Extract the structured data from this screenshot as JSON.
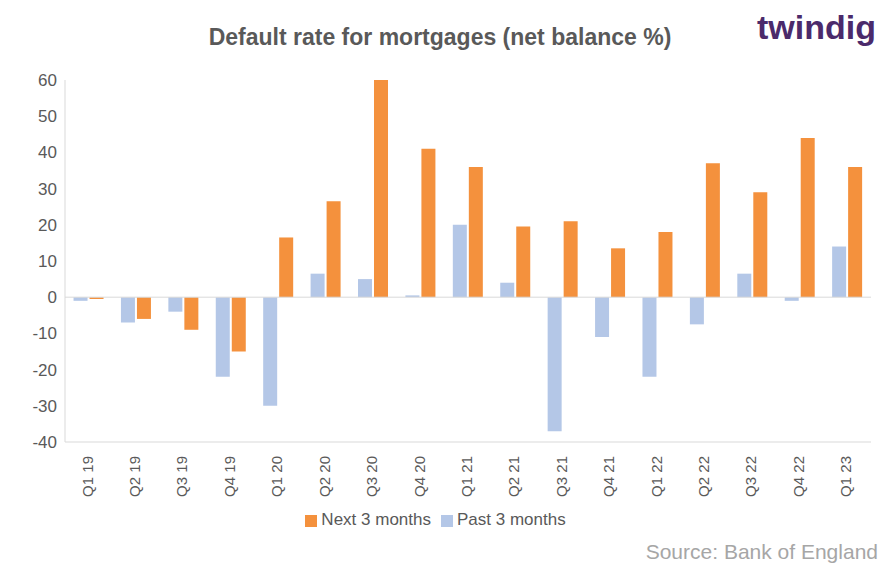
{
  "chart_data": {
    "type": "bar",
    "title": "Default rate for mortgages (net balance %)",
    "annotations": [
      "twindig",
      "Source: Bank of England"
    ],
    "categories": [
      "Q1 19",
      "Q2 19",
      "Q3 19",
      "Q4 19",
      "Q1 20",
      "Q2 20",
      "Q3 20",
      "Q4 20",
      "Q1 21",
      "Q2 21",
      "Q3 21",
      "Q4 21",
      "Q1 22",
      "Q2 22",
      "Q3 22",
      "Q4 22",
      "Q1 23"
    ],
    "series": [
      {
        "name": "Past 3 months",
        "color": "#b4c7e7",
        "values": [
          -1,
          -7,
          -4,
          -22,
          -30,
          6.5,
          5,
          0.5,
          20,
          4,
          -37,
          -11,
          -22,
          -7.5,
          6.5,
          -1,
          14
        ]
      },
      {
        "name": "Next 3 months",
        "color": "#f4913d",
        "values": [
          -0.5,
          -6,
          -9,
          -15,
          16.5,
          26.5,
          60,
          41,
          36,
          19.5,
          21,
          13.5,
          18,
          37,
          29,
          44,
          36
        ]
      }
    ],
    "ylim": [
      -40,
      60
    ],
    "yticks": [
      -40,
      -30,
      -20,
      -10,
      0,
      10,
      20,
      30,
      40,
      50,
      60
    ],
    "grid": false,
    "legend": "bottom"
  }
}
